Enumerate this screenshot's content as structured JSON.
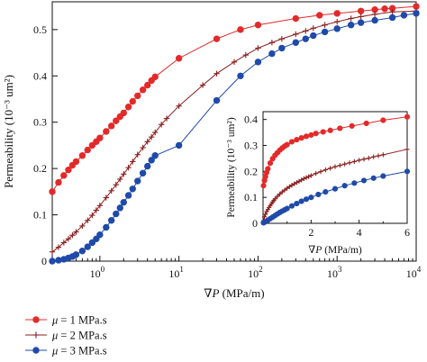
{
  "chart_data": [
    {
      "type": "line",
      "xscale": "log",
      "xlabel": "∇P (MPa/m)",
      "ylabel": "Permeability (10⁻³ um²)",
      "xlim": [
        0.25,
        10000
      ],
      "ylim": [
        0,
        0.56
      ],
      "xticks": [
        {
          "v": 1,
          "e": "0"
        },
        {
          "v": 10,
          "e": "1"
        },
        {
          "v": 100,
          "e": "2"
        },
        {
          "v": 1000,
          "e": "3"
        },
        {
          "v": 10000,
          "e": "4"
        }
      ],
      "xtick_base": "10",
      "yticks": [
        "0",
        "0.1",
        "0.2",
        "0.3",
        "0.4",
        "0.5"
      ],
      "series": [
        {
          "name": "μ = 1 MPa.s",
          "color": "#e32a2a",
          "marker": "circle",
          "x": [
            0.25,
            0.3,
            0.35,
            0.4,
            0.45,
            0.5,
            0.6,
            0.7,
            0.8,
            0.9,
            1.0,
            1.2,
            1.4,
            1.6,
            1.8,
            2.0,
            2.3,
            2.6,
            3.0,
            3.5,
            4.0,
            4.5,
            5.0,
            10,
            30,
            60,
            100,
            300,
            600,
            1000,
            2000,
            3000,
            4000,
            5000,
            10000
          ],
          "y": [
            0.15,
            0.17,
            0.185,
            0.197,
            0.207,
            0.215,
            0.228,
            0.24,
            0.25,
            0.258,
            0.266,
            0.28,
            0.292,
            0.303,
            0.312,
            0.32,
            0.333,
            0.345,
            0.357,
            0.37,
            0.38,
            0.39,
            0.398,
            0.438,
            0.48,
            0.5,
            0.51,
            0.524,
            0.531,
            0.535,
            0.54,
            0.543,
            0.545,
            0.546,
            0.55
          ]
        },
        {
          "name": "μ = 2 MPa.s",
          "color": "#8b1f1f",
          "marker": "plus",
          "x": [
            0.25,
            0.3,
            0.35,
            0.4,
            0.45,
            0.5,
            0.6,
            0.7,
            0.8,
            0.9,
            1.0,
            1.2,
            1.4,
            1.6,
            1.8,
            2.0,
            2.3,
            2.6,
            3.0,
            3.5,
            4.0,
            4.5,
            5.0,
            6.0,
            7.0,
            10,
            20,
            30,
            50,
            70,
            100,
            150,
            200,
            300,
            400,
            500,
            700,
            1000,
            1500,
            2000,
            3000,
            5000,
            10000
          ],
          "y": [
            0.02,
            0.03,
            0.04,
            0.048,
            0.056,
            0.063,
            0.076,
            0.088,
            0.099,
            0.11,
            0.12,
            0.137,
            0.152,
            0.165,
            0.177,
            0.188,
            0.202,
            0.215,
            0.23,
            0.245,
            0.258,
            0.268,
            0.278,
            0.295,
            0.308,
            0.335,
            0.38,
            0.405,
            0.43,
            0.445,
            0.46,
            0.472,
            0.48,
            0.49,
            0.497,
            0.503,
            0.51,
            0.517,
            0.524,
            0.528,
            0.533,
            0.538,
            0.54
          ]
        },
        {
          "name": "μ = 3 MPa.s",
          "color": "#1f4aa8",
          "marker": "circle",
          "x": [
            0.25,
            0.3,
            0.35,
            0.4,
            0.45,
            0.5,
            0.6,
            0.7,
            0.8,
            0.9,
            1.0,
            1.2,
            1.4,
            1.6,
            1.8,
            2.0,
            2.3,
            2.6,
            3.0,
            3.5,
            4.0,
            4.5,
            5.0,
            10,
            30,
            60,
            100,
            150,
            200,
            300,
            400,
            500,
            700,
            1000,
            1500,
            2000,
            3000,
            5000,
            7000,
            10000
          ],
          "y": [
            0.0,
            0.002,
            0.004,
            0.007,
            0.01,
            0.014,
            0.022,
            0.031,
            0.04,
            0.048,
            0.057,
            0.073,
            0.088,
            0.102,
            0.115,
            0.127,
            0.142,
            0.156,
            0.173,
            0.19,
            0.205,
            0.218,
            0.228,
            0.25,
            0.347,
            0.4,
            0.43,
            0.448,
            0.46,
            0.472,
            0.48,
            0.487,
            0.495,
            0.502,
            0.51,
            0.515,
            0.52,
            0.526,
            0.531,
            0.535
          ]
        }
      ]
    },
    {
      "type": "line",
      "inset": true,
      "xscale": "linear",
      "xlabel": "∇P (MPa/m)",
      "ylabel": "Permeability (10⁻³ um²)",
      "xlim": [
        0,
        6
      ],
      "ylim": [
        0,
        0.43
      ],
      "xticks": [
        "2",
        "4",
        "6"
      ],
      "yticks": [
        "0",
        "0.1",
        "0.2",
        "0.3",
        "0.4"
      ],
      "series": [
        {
          "name": "μ = 1 MPa.s",
          "color": "#e32a2a",
          "marker": "circle",
          "x": [
            0.02,
            0.06,
            0.1,
            0.15,
            0.2,
            0.3,
            0.4,
            0.5,
            0.6,
            0.7,
            0.8,
            0.9,
            1.0,
            1.2,
            1.4,
            1.6,
            1.8,
            2.0,
            2.2,
            2.5,
            2.8,
            3.2,
            3.7,
            4.3,
            5.0,
            6.0
          ],
          "y": [
            0.145,
            0.165,
            0.18,
            0.196,
            0.21,
            0.232,
            0.249,
            0.262,
            0.272,
            0.282,
            0.29,
            0.297,
            0.303,
            0.314,
            0.322,
            0.329,
            0.335,
            0.34,
            0.346,
            0.352,
            0.358,
            0.366,
            0.375,
            0.385,
            0.397,
            0.41
          ]
        },
        {
          "name": "μ = 2 MPa.s",
          "color": "#8b1f1f",
          "marker": "plus",
          "x": [
            0.02,
            0.06,
            0.1,
            0.15,
            0.2,
            0.25,
            0.3,
            0.35,
            0.4,
            0.45,
            0.5,
            0.6,
            0.7,
            0.8,
            0.9,
            1.0,
            1.1,
            1.2,
            1.3,
            1.4,
            1.5,
            1.6,
            1.7,
            1.8,
            1.9,
            2.0,
            2.2,
            2.4,
            2.6,
            2.8,
            3.0,
            3.2,
            3.4,
            3.6,
            3.8,
            4.0,
            4.2,
            4.4,
            4.6,
            4.8,
            5.0,
            6.0
          ],
          "y": [
            0.01,
            0.025,
            0.035,
            0.045,
            0.053,
            0.061,
            0.068,
            0.075,
            0.082,
            0.088,
            0.094,
            0.104,
            0.113,
            0.121,
            0.128,
            0.135,
            0.141,
            0.147,
            0.152,
            0.157,
            0.162,
            0.167,
            0.172,
            0.176,
            0.18,
            0.184,
            0.192,
            0.199,
            0.206,
            0.212,
            0.218,
            0.223,
            0.228,
            0.233,
            0.238,
            0.243,
            0.247,
            0.251,
            0.256,
            0.26,
            0.264,
            0.285
          ]
        },
        {
          "name": "μ = 3 MPa.s",
          "color": "#1f4aa8",
          "marker": "circle",
          "x": [
            0.02,
            0.1,
            0.2,
            0.3,
            0.4,
            0.5,
            0.6,
            0.7,
            0.8,
            0.9,
            1.0,
            1.2,
            1.4,
            1.6,
            1.8,
            2.0,
            2.3,
            2.6,
            3.0,
            3.4,
            3.8,
            4.2,
            4.6,
            5.0,
            6.0
          ],
          "y": [
            0.002,
            0.006,
            0.012,
            0.018,
            0.024,
            0.03,
            0.036,
            0.042,
            0.047,
            0.052,
            0.057,
            0.067,
            0.076,
            0.085,
            0.093,
            0.1,
            0.111,
            0.121,
            0.133,
            0.145,
            0.155,
            0.165,
            0.174,
            0.182,
            0.2
          ]
        }
      ]
    }
  ],
  "legend": {
    "items": [
      {
        "symbol": "μ",
        "text": " = 1 MPa.s",
        "color": "#e32a2a",
        "marker": "circle"
      },
      {
        "symbol": "μ",
        "text": " = 2 MPa.s",
        "color": "#8b1f1f",
        "marker": "plus"
      },
      {
        "symbol": "μ",
        "text": " = 3 MPa.s",
        "color": "#1f4aa8",
        "marker": "circle"
      }
    ]
  }
}
